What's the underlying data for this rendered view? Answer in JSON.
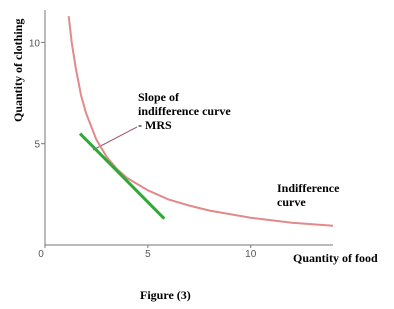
{
  "chart_data": {
    "type": "line",
    "caption": "Figure (3)",
    "x_label": "Quantity of food",
    "y_label": "Quantity of clothing",
    "xlim": [
      0,
      14
    ],
    "ylim": [
      0,
      11.6
    ],
    "xticks": [
      0,
      5,
      10
    ],
    "yticks": [
      5,
      10
    ],
    "series": [
      {
        "color": "#e08a8a",
        "x": [
          1.15,
          1.3,
          1.5,
          1.75,
          2,
          2.5,
          3,
          3.5,
          4,
          5,
          6,
          7,
          8,
          10,
          12,
          14
        ],
        "values": [
          11.3,
          10,
          8.7,
          7.4,
          6.5,
          5.2,
          4.35,
          3.75,
          3.3,
          2.7,
          2.25,
          1.95,
          1.7,
          1.35,
          1.1,
          0.95
        ]
      },
      {
        "color": "#2ea836",
        "x": [
          1.7,
          5.8
        ],
        "values": [
          5.5,
          1.3
        ]
      }
    ],
    "annotations": [
      {
        "lines": [
          "Slope of",
          "indifference curve",
          "- MRS"
        ]
      },
      {
        "lines": [
          "Indifference",
          "curve"
        ]
      }
    ]
  }
}
